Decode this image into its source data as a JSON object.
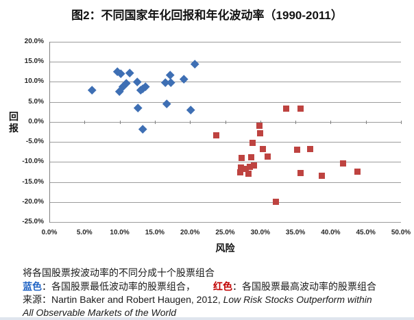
{
  "title": "图2：不同国家年化回报和年化波动率（1990-2011）",
  "chart_data": {
    "type": "scatter",
    "title": "图2：不同国家年化回报和年化波动率（1990-2011）",
    "xlabel": "风险",
    "ylabel": "回报",
    "xlim": [
      0,
      50
    ],
    "ylim": [
      -25,
      20
    ],
    "x_ticks": [
      "0.0%",
      "5.0%",
      "10.0%",
      "15.0%",
      "20.0%",
      "25.0%",
      "30.0%",
      "35.0%",
      "40.0%",
      "45.0%",
      "50.0%"
    ],
    "y_ticks": [
      "20.0%",
      "15.0%",
      "10.0%",
      "5.0%",
      "0.0%",
      "-5.0%",
      "-10.0%",
      "-15.0%",
      "-20.0%",
      "-25.0%"
    ],
    "grid": true,
    "legend_position": "none",
    "units": "percent",
    "series": [
      {
        "name": "各国股票最低波动率的股票组合（蓝色）",
        "marker": "diamond",
        "color": "#3e6fb4",
        "points": [
          [
            6.1,
            8.0
          ],
          [
            9.7,
            12.6
          ],
          [
            10.2,
            12.1
          ],
          [
            11.4,
            12.3
          ],
          [
            10.9,
            9.7
          ],
          [
            10.5,
            8.8
          ],
          [
            10.0,
            7.7
          ],
          [
            12.5,
            10.0
          ],
          [
            13.0,
            7.9
          ],
          [
            13.3,
            8.3
          ],
          [
            13.7,
            8.9
          ],
          [
            12.6,
            3.5
          ],
          [
            13.3,
            -1.8
          ],
          [
            16.5,
            9.9
          ],
          [
            17.2,
            11.7
          ],
          [
            17.3,
            9.9
          ],
          [
            16.7,
            4.5
          ],
          [
            19.1,
            10.8
          ],
          [
            20.1,
            3.1
          ],
          [
            20.7,
            14.5
          ]
        ]
      },
      {
        "name": "各国股票最高波动率的股票组合（红色）",
        "marker": "square",
        "color": "#be4340",
        "points": [
          [
            23.7,
            -3.3
          ],
          [
            29.9,
            -0.9
          ],
          [
            30.0,
            -2.9
          ],
          [
            33.7,
            3.4
          ],
          [
            35.7,
            3.4
          ],
          [
            28.9,
            -5.3
          ],
          [
            30.4,
            -6.7
          ],
          [
            35.2,
            -7.0
          ],
          [
            37.1,
            -6.8
          ],
          [
            27.3,
            -9.0
          ],
          [
            28.7,
            -8.9
          ],
          [
            31.0,
            -8.7
          ],
          [
            27.2,
            -11.4
          ],
          [
            27.9,
            -11.8
          ],
          [
            28.5,
            -11.2
          ],
          [
            29.1,
            -10.9
          ],
          [
            27.1,
            -12.6
          ],
          [
            28.3,
            -12.9
          ],
          [
            35.7,
            -12.8
          ],
          [
            38.7,
            -13.5
          ],
          [
            41.8,
            -10.4
          ],
          [
            43.8,
            -12.4
          ],
          [
            32.2,
            -20.0
          ]
        ]
      }
    ]
  },
  "notes": {
    "grouping": "将各国股票按波动率的不同分成十个股票组合",
    "blue_label": "蓝色",
    "blue_desc": "：各国股票最低波动率的股票组合，",
    "red_label": "红色",
    "red_desc": "：各国股票最高波动率的股票组合"
  },
  "source": {
    "prefix": "来源：Nartin Baker and Robert Haugen, 2012, ",
    "title_line1": "Low Risk Stocks Outperform within",
    "title_line2": "All Observable Markets of the World"
  },
  "colors": {
    "blue_marker": "#3e6fb4",
    "red_marker": "#be4340",
    "gridline": "#9b9b9b",
    "axis": "#7f7f7f"
  }
}
